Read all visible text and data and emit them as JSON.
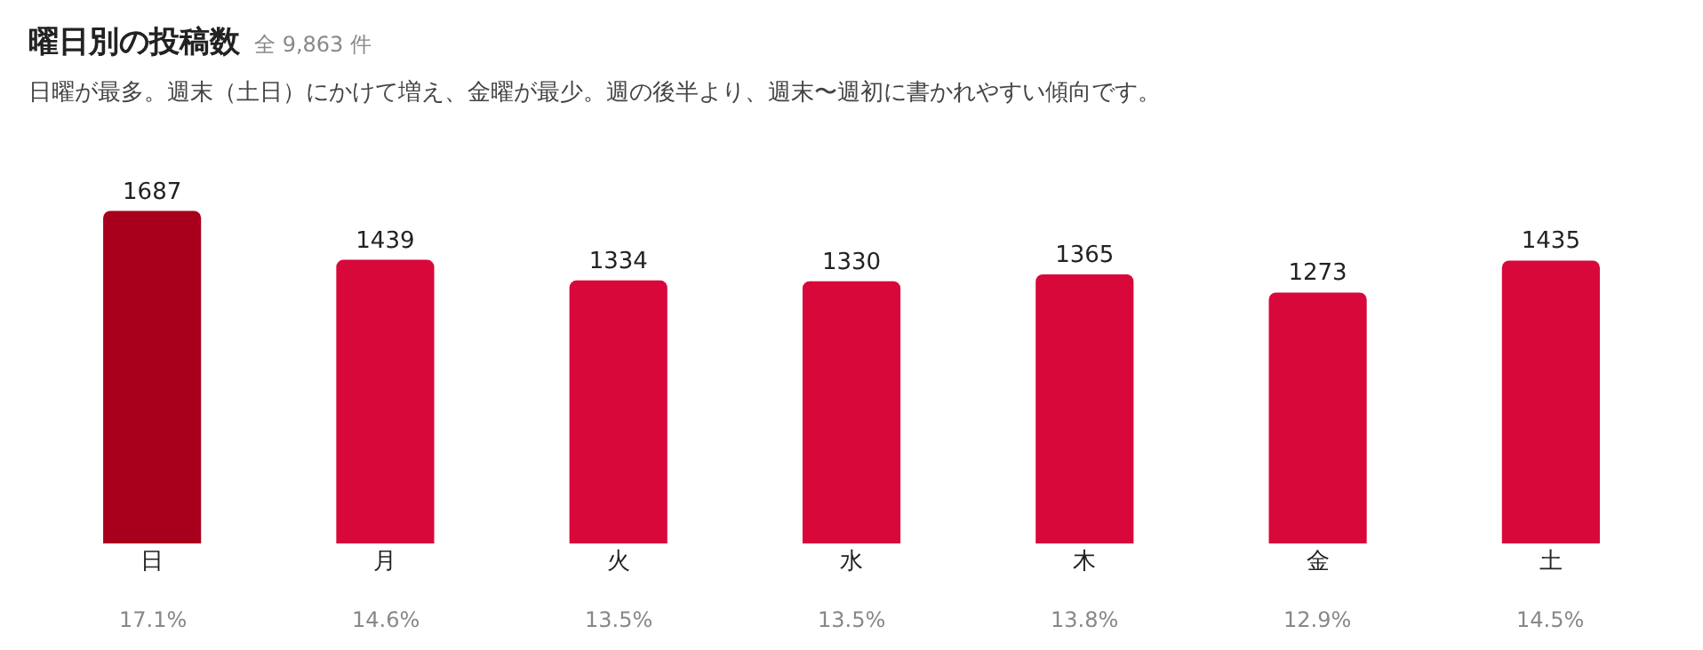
{
  "chart_data": {
    "type": "bar",
    "title": "曜日別の投稿数",
    "subtitle": "日曜が最多。週末（土日）にかけて増え、金曜が最少。週の後半より、週末〜週初に書かれやすい傾向です。",
    "categories": [
      "日",
      "月",
      "火",
      "水",
      "木",
      "金",
      "土"
    ],
    "values": [
      1687,
      1439,
      1334,
      1330,
      1365,
      1273,
      1435
    ],
    "colors": [
      "#a8001c",
      "#d8083a",
      "#d8083a",
      "#d8083a",
      "#d8083a",
      "#d8083a",
      "#d8083a"
    ],
    "data_labels": true,
    "annotations": [
      "全 9,863 件",
      "17.1%",
      "14.6%",
      "13.5%",
      "13.5%",
      "13.8%",
      "12.9%",
      "14.5%"
    ],
    "grid": false,
    "legend": false
  }
}
